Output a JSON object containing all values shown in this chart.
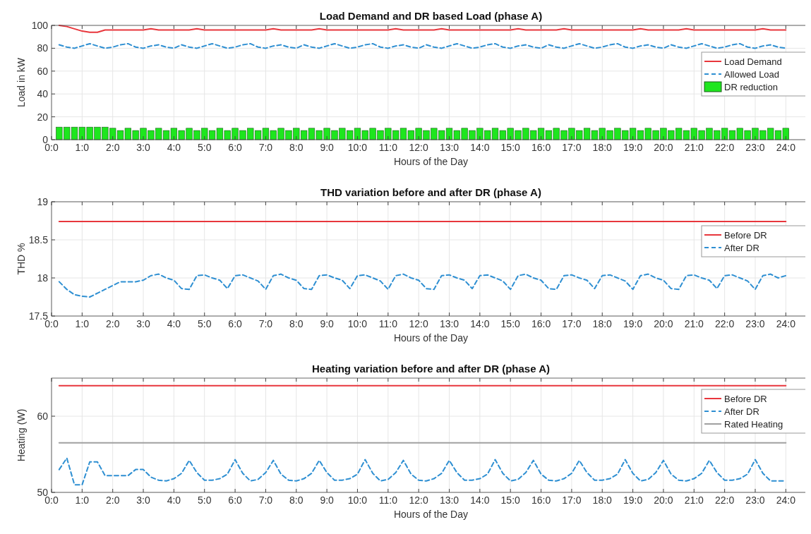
{
  "chart_data": [
    {
      "type": "line",
      "title": "Load Demand and DR based Load (phase A)",
      "xlabel": "Hours of the Day",
      "ylabel": "Load in kW",
      "grid": true,
      "legend": "top right",
      "ylim": [
        0,
        100
      ],
      "yticks": [
        0,
        20,
        40,
        60,
        80,
        100
      ],
      "categories": [
        "0:0",
        null,
        null,
        null,
        "1:0",
        null,
        null,
        null,
        "2:0",
        null,
        null,
        null,
        "3:0",
        null,
        null,
        null,
        "4:0",
        null,
        null,
        null,
        "5:0",
        null,
        null,
        null,
        "6:0",
        null,
        null,
        null,
        "7:0",
        null,
        null,
        null,
        "8:0",
        null,
        null,
        null,
        "9:0",
        null,
        null,
        null,
        "10:0",
        null,
        null,
        null,
        "11:0",
        null,
        null,
        null,
        "12:0",
        null,
        null,
        null,
        "13:0",
        null,
        null,
        null,
        "14:0",
        null,
        null,
        null,
        "15:0",
        null,
        null,
        null,
        "16:0",
        null,
        null,
        null,
        "17:0",
        null,
        null,
        null,
        "18:0",
        null,
        null,
        null,
        "19:0",
        null,
        null,
        null,
        "20:0",
        null,
        null,
        null,
        "21:0",
        null,
        null,
        null,
        "22:0",
        null,
        null,
        null,
        "23:0",
        null,
        null,
        null,
        "24:0"
      ],
      "series": [
        {
          "name": "Load Demand",
          "color": "#e8363c",
          "line_style": "solid",
          "values": [
            null,
            100,
            99,
            97,
            95,
            94,
            94,
            96,
            96,
            96,
            96,
            96,
            96,
            97,
            96,
            96,
            96,
            96,
            96,
            97,
            96,
            96,
            96,
            96,
            96,
            96,
            96,
            96,
            96,
            97,
            96,
            96,
            96,
            96,
            96,
            97,
            96,
            96,
            96,
            96,
            96,
            96,
            96,
            96,
            96,
            97,
            96,
            96,
            96,
            96,
            96,
            97,
            96,
            96,
            96,
            96,
            96,
            96,
            96,
            96,
            96,
            97,
            96,
            96,
            96,
            96,
            96,
            97,
            96,
            96,
            96,
            96,
            96,
            96,
            96,
            96,
            96,
            97,
            96,
            96,
            96,
            96,
            96,
            97,
            96,
            96,
            96,
            96,
            96,
            96,
            96,
            96,
            96,
            97,
            96,
            96,
            96
          ]
        },
        {
          "name": "Allowed Load",
          "color": "#2e8fd2",
          "line_style": "dashed",
          "values": [
            null,
            83,
            81,
            80,
            82,
            84,
            82,
            80,
            81,
            83,
            84,
            81,
            80,
            82,
            83,
            81,
            80,
            83,
            81,
            80,
            82,
            84,
            82,
            80,
            81,
            83,
            84,
            81,
            80,
            82,
            83,
            81,
            80,
            83,
            81,
            80,
            82,
            84,
            82,
            80,
            81,
            83,
            84,
            81,
            80,
            82,
            83,
            81,
            80,
            83,
            81,
            80,
            82,
            84,
            82,
            80,
            81,
            83,
            84,
            81,
            80,
            82,
            83,
            81,
            80,
            83,
            81,
            80,
            82,
            84,
            82,
            80,
            81,
            83,
            84,
            81,
            80,
            82,
            83,
            81,
            80,
            83,
            81,
            80,
            82,
            84,
            82,
            80,
            81,
            83,
            84,
            81,
            80,
            82,
            83,
            81,
            80
          ]
        },
        {
          "name": "DR reduction",
          "type": "bar",
          "color": "#1ee61e",
          "values": [
            null,
            11,
            11,
            11,
            11,
            11,
            11,
            11,
            10,
            8,
            10,
            8,
            10,
            8,
            10,
            8,
            10,
            8,
            10,
            8,
            10,
            8,
            10,
            8,
            10,
            8,
            10,
            8,
            10,
            8,
            10,
            8,
            10,
            8,
            10,
            8,
            10,
            8,
            10,
            8,
            10,
            8,
            10,
            8,
            10,
            8,
            10,
            8,
            10,
            8,
            10,
            8,
            10,
            8,
            10,
            8,
            10,
            8,
            10,
            8,
            10,
            8,
            10,
            8,
            10,
            8,
            10,
            8,
            10,
            8,
            10,
            8,
            10,
            8,
            10,
            8,
            10,
            8,
            10,
            8,
            10,
            8,
            10,
            8,
            10,
            8,
            10,
            8,
            10,
            8,
            10,
            8,
            10,
            8,
            10,
            8,
            10
          ]
        }
      ]
    },
    {
      "type": "line",
      "title": "THD variation before and after DR (phase A)",
      "xlabel": "Hours of the Day",
      "ylabel": "THD %",
      "grid": true,
      "legend": "top right",
      "ylim": [
        17.5,
        19
      ],
      "yticks": [
        17.5,
        18,
        18.5,
        19
      ],
      "categories": [
        "0:0",
        null,
        null,
        null,
        "1:0",
        null,
        null,
        null,
        "2:0",
        null,
        null,
        null,
        "3:0",
        null,
        null,
        null,
        "4:0",
        null,
        null,
        null,
        "5:0",
        null,
        null,
        null,
        "6:0",
        null,
        null,
        null,
        "7:0",
        null,
        null,
        null,
        "8:0",
        null,
        null,
        null,
        "9:0",
        null,
        null,
        null,
        "10:0",
        null,
        null,
        null,
        "11:0",
        null,
        null,
        null,
        "12:0",
        null,
        null,
        null,
        "13:0",
        null,
        null,
        null,
        "14:0",
        null,
        null,
        null,
        "15:0",
        null,
        null,
        null,
        "16:0",
        null,
        null,
        null,
        "17:0",
        null,
        null,
        null,
        "18:0",
        null,
        null,
        null,
        "19:0",
        null,
        null,
        null,
        "20:0",
        null,
        null,
        null,
        "21:0",
        null,
        null,
        null,
        "22:0",
        null,
        null,
        null,
        "23:0",
        null,
        null,
        null,
        "24:0"
      ],
      "series": [
        {
          "name": "Before DR",
          "color": "#e8363c",
          "line_style": "solid",
          "values": [
            null,
            18.74,
            18.74,
            18.74,
            18.74,
            18.74,
            18.74,
            18.74,
            18.74,
            18.74,
            18.74,
            18.74,
            18.74,
            18.74,
            18.74,
            18.74,
            18.74,
            18.74,
            18.74,
            18.74,
            18.74,
            18.74,
            18.74,
            18.74,
            18.74,
            18.74,
            18.74,
            18.74,
            18.74,
            18.74,
            18.74,
            18.74,
            18.74,
            18.74,
            18.74,
            18.74,
            18.74,
            18.74,
            18.74,
            18.74,
            18.74,
            18.74,
            18.74,
            18.74,
            18.74,
            18.74,
            18.74,
            18.74,
            18.74,
            18.74,
            18.74,
            18.74,
            18.74,
            18.74,
            18.74,
            18.74,
            18.74,
            18.74,
            18.74,
            18.74,
            18.74,
            18.74,
            18.74,
            18.74,
            18.74,
            18.74,
            18.74,
            18.74,
            18.74,
            18.74,
            18.74,
            18.74,
            18.74,
            18.74,
            18.74,
            18.74,
            18.74,
            18.74,
            18.74,
            18.74,
            18.74,
            18.74,
            18.74,
            18.74,
            18.74,
            18.74,
            18.74,
            18.74,
            18.74,
            18.74,
            18.74,
            18.74,
            18.74,
            18.74,
            18.74,
            18.74,
            18.74
          ]
        },
        {
          "name": "After DR",
          "color": "#2e8fd2",
          "line_style": "dashed",
          "values": [
            null,
            17.95,
            17.85,
            17.78,
            17.76,
            17.75,
            17.8,
            17.85,
            17.9,
            17.95,
            17.95,
            17.95,
            17.97,
            18.03,
            18.05,
            18.0,
            17.97,
            17.86,
            17.85,
            18.03,
            18.04,
            18.0,
            17.97,
            17.86,
            18.03,
            18.04,
            18.0,
            17.96,
            17.85,
            18.03,
            18.05,
            18.0,
            17.97,
            17.86,
            17.85,
            18.03,
            18.04,
            18.0,
            17.97,
            17.86,
            18.03,
            18.04,
            18.0,
            17.96,
            17.85,
            18.03,
            18.05,
            18.0,
            17.97,
            17.86,
            17.85,
            18.03,
            18.04,
            18.0,
            17.97,
            17.86,
            18.03,
            18.04,
            18.0,
            17.96,
            17.85,
            18.03,
            18.05,
            18.0,
            17.97,
            17.86,
            17.85,
            18.03,
            18.04,
            18.0,
            17.97,
            17.86,
            18.03,
            18.04,
            18.0,
            17.96,
            17.85,
            18.03,
            18.05,
            18.0,
            17.97,
            17.86,
            17.85,
            18.03,
            18.04,
            18.0,
            17.97,
            17.86,
            18.03,
            18.04,
            18.0,
            17.96,
            17.85,
            18.03,
            18.05,
            18.0,
            18.03
          ]
        }
      ]
    },
    {
      "type": "line",
      "title": "Heating variation before and after DR (phase A)",
      "xlabel": "Hours of the Day",
      "ylabel": "Heating (W)",
      "grid": true,
      "legend": "top right",
      "ylim": [
        50,
        65
      ],
      "yticks": [
        50,
        60
      ],
      "categories": [
        "0:0",
        null,
        null,
        null,
        "1:0",
        null,
        null,
        null,
        "2:0",
        null,
        null,
        null,
        "3:0",
        null,
        null,
        null,
        "4:0",
        null,
        null,
        null,
        "5:0",
        null,
        null,
        null,
        "6:0",
        null,
        null,
        null,
        "7:0",
        null,
        null,
        null,
        "8:0",
        null,
        null,
        null,
        "9:0",
        null,
        null,
        null,
        "10:0",
        null,
        null,
        null,
        "11:0",
        null,
        null,
        null,
        "12:0",
        null,
        null,
        null,
        "13:0",
        null,
        null,
        null,
        "14:0",
        null,
        null,
        null,
        "15:0",
        null,
        null,
        null,
        "16:0",
        null,
        null,
        null,
        "17:0",
        null,
        null,
        null,
        "18:0",
        null,
        null,
        null,
        "19:0",
        null,
        null,
        null,
        "20:0",
        null,
        null,
        null,
        "21:0",
        null,
        null,
        null,
        "22:0",
        null,
        null,
        null,
        "23:0",
        null,
        null,
        null,
        "24:0"
      ],
      "series": [
        {
          "name": "Before DR",
          "color": "#e8363c",
          "line_style": "solid",
          "values": [
            null,
            64,
            64,
            64,
            64,
            64,
            64,
            64,
            64,
            64,
            64,
            64,
            64,
            64,
            64,
            64,
            64,
            64,
            64,
            64,
            64,
            64,
            64,
            64,
            64,
            64,
            64,
            64,
            64,
            64,
            64,
            64,
            64,
            64,
            64,
            64,
            64,
            64,
            64,
            64,
            64,
            64,
            64,
            64,
            64,
            64,
            64,
            64,
            64,
            64,
            64,
            64,
            64,
            64,
            64,
            64,
            64,
            64,
            64,
            64,
            64,
            64,
            64,
            64,
            64,
            64,
            64,
            64,
            64,
            64,
            64,
            64,
            64,
            64,
            64,
            64,
            64,
            64,
            64,
            64,
            64,
            64,
            64,
            64,
            64,
            64,
            64,
            64,
            64,
            64,
            64,
            64,
            64,
            64,
            64,
            64,
            64
          ]
        },
        {
          "name": "After DR",
          "color": "#2e8fd2",
          "line_style": "dashed",
          "values": [
            null,
            53,
            54.5,
            51,
            51,
            54,
            54,
            52.2,
            52.2,
            52.2,
            52.2,
            53,
            53,
            52,
            51.6,
            51.5,
            51.8,
            52.5,
            54.2,
            52.6,
            51.6,
            51.6,
            51.8,
            52.4,
            54.3,
            52.5,
            51.5,
            51.7,
            52.6,
            54.2,
            52.4,
            51.6,
            51.5,
            51.8,
            52.5,
            54.2,
            52.6,
            51.6,
            51.6,
            51.8,
            52.4,
            54.3,
            52.5,
            51.5,
            51.7,
            52.6,
            54.2,
            52.4,
            51.6,
            51.5,
            51.8,
            52.5,
            54.2,
            52.6,
            51.6,
            51.6,
            51.8,
            52.4,
            54.3,
            52.5,
            51.5,
            51.7,
            52.6,
            54.2,
            52.4,
            51.6,
            51.5,
            51.8,
            52.5,
            54.2,
            52.6,
            51.6,
            51.6,
            51.8,
            52.4,
            54.3,
            52.5,
            51.5,
            51.7,
            52.6,
            54.2,
            52.4,
            51.6,
            51.5,
            51.8,
            52.5,
            54.2,
            52.6,
            51.6,
            51.6,
            51.8,
            52.4,
            54.3,
            52.5,
            51.5,
            51.5,
            51.5
          ]
        },
        {
          "name": "Rated Heating",
          "color": "#a0a0a0",
          "line_style": "solid",
          "values": [
            null,
            56.5,
            56.5,
            56.5,
            56.5,
            56.5,
            56.5,
            56.5,
            56.5,
            56.5,
            56.5,
            56.5,
            56.5,
            56.5,
            56.5,
            56.5,
            56.5,
            56.5,
            56.5,
            56.5,
            56.5,
            56.5,
            56.5,
            56.5,
            56.5,
            56.5,
            56.5,
            56.5,
            56.5,
            56.5,
            56.5,
            56.5,
            56.5,
            56.5,
            56.5,
            56.5,
            56.5,
            56.5,
            56.5,
            56.5,
            56.5,
            56.5,
            56.5,
            56.5,
            56.5,
            56.5,
            56.5,
            56.5,
            56.5,
            56.5,
            56.5,
            56.5,
            56.5,
            56.5,
            56.5,
            56.5,
            56.5,
            56.5,
            56.5,
            56.5,
            56.5,
            56.5,
            56.5,
            56.5,
            56.5,
            56.5,
            56.5,
            56.5,
            56.5,
            56.5,
            56.5,
            56.5,
            56.5,
            56.5,
            56.5,
            56.5,
            56.5,
            56.5,
            56.5,
            56.5,
            56.5,
            56.5,
            56.5,
            56.5,
            56.5,
            56.5,
            56.5,
            56.5,
            56.5,
            56.5,
            56.5,
            56.5,
            56.5,
            56.5,
            56.5,
            56.5,
            56.5
          ]
        }
      ]
    }
  ]
}
